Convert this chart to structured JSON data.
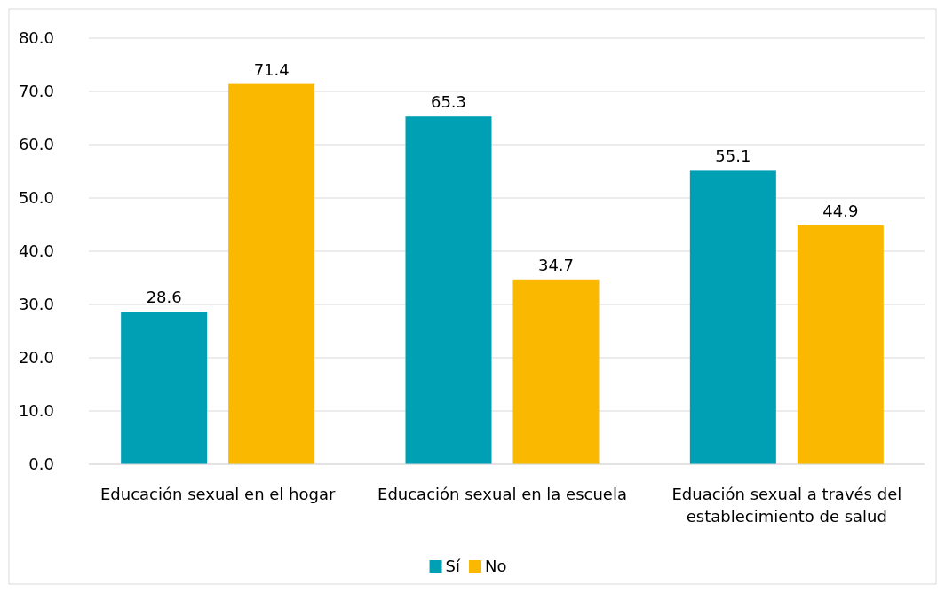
{
  "chart_data": {
    "type": "bar",
    "categories": [
      "Educación sexual en el hogar",
      "Educación sexual en la escuela",
      "Eduación sexual a través del establecimiento de salud"
    ],
    "series": [
      {
        "name": "Sí",
        "color": "#00a0b4",
        "values": [
          28.6,
          65.3,
          55.1
        ]
      },
      {
        "name": "No",
        "color": "#fbb800",
        "values": [
          71.4,
          34.7,
          44.9
        ]
      }
    ],
    "ylim": [
      0,
      80
    ],
    "yticks": [
      {
        "value": 0,
        "label": "0.0"
      },
      {
        "value": 10,
        "label": "10.0"
      },
      {
        "value": 20,
        "label": "20.0"
      },
      {
        "value": 30,
        "label": "30.0"
      },
      {
        "value": 40,
        "label": "40.0"
      },
      {
        "value": 50,
        "label": "50.0"
      },
      {
        "value": 60,
        "label": "60.0"
      },
      {
        "value": 70,
        "label": "70.0"
      },
      {
        "value": 80,
        "label": "80.0"
      }
    ],
    "grid": "y",
    "legend": "bottom",
    "data_labels": true
  }
}
